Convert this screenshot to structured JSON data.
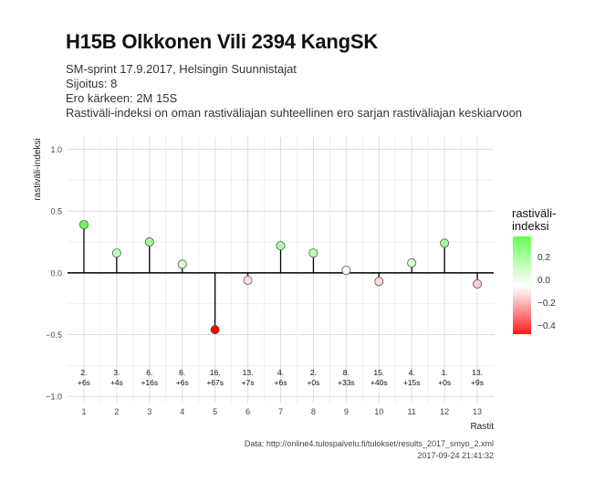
{
  "title": "H15B Olkkonen Vili 2394 KangSK",
  "subtitle_lines": [
    "SM-sprint 17.9.2017, Helsingin Suunnistajat",
    "Sijoitus: 8",
    "Ero kärkeen: 2M 15S",
    "Rastiväli-indeksi on oman rastiväliajan suhteellinen ero sarjan rastiväliajan keskiarvoon"
  ],
  "caption_lines": [
    "Data: http://online4.tulospalvelu.fi/tulokset/results_2017_smyo_2.xml",
    "2017-09-24 21:41:32"
  ],
  "chart_data": {
    "type": "lollipop",
    "xlabel": "Rastit",
    "ylabel": "rastiväli-indeksi",
    "x": [
      1,
      2,
      3,
      4,
      5,
      6,
      7,
      8,
      9,
      10,
      11,
      12,
      13
    ],
    "values": [
      0.39,
      0.16,
      0.25,
      0.07,
      -0.46,
      -0.06,
      0.22,
      0.16,
      0.02,
      -0.07,
      0.08,
      0.24,
      -0.09
    ],
    "leg_rank": [
      "2.",
      "3.",
      "6.",
      "6.",
      "16.",
      "13.",
      "4.",
      "2.",
      "8.",
      "15.",
      "4.",
      "1.",
      "13."
    ],
    "leg_diff": [
      "+6s",
      "+4s",
      "+16s",
      "+6s",
      "+67s",
      "+7s",
      "+6s",
      "+0s",
      "+33s",
      "+40s",
      "+15s",
      "+0s",
      "+9s"
    ],
    "ylim": [
      -1.05,
      1.1
    ],
    "xlim": [
      0.5,
      13.5
    ],
    "yticks": [
      -1.0,
      -0.5,
      0.0,
      0.5,
      1.0
    ],
    "ytick_labels": [
      "−1.0",
      "−0.5",
      "0.0",
      "0.5",
      "1.0"
    ],
    "xticks": [
      1,
      2,
      3,
      4,
      5,
      6,
      7,
      8,
      9,
      10,
      11,
      12,
      13
    ],
    "grid": true,
    "legend": {
      "title": "rastiväli-\nindeksi",
      "position": "right",
      "ticks": [
        "0.2",
        "0.0",
        "−0.2",
        "−0.4"
      ],
      "tick_values": [
        0.2,
        0.0,
        -0.2,
        -0.4
      ],
      "range": [
        -0.46,
        0.39
      ]
    },
    "colors": {
      "high": "#66ff55",
      "mid": "#ffffff",
      "low": "#ff0000"
    }
  }
}
